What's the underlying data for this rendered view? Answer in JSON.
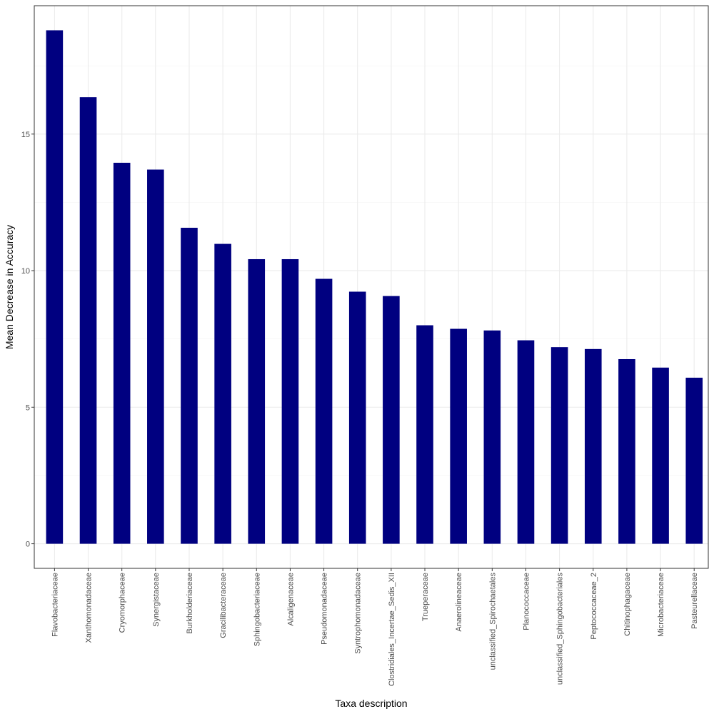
{
  "colors": {
    "bar": "#000080",
    "grid_major": "#ebebeb",
    "grid_minor": "#f5f5f5",
    "panel_border": "#333333",
    "tick_text": "#4d4d4d"
  },
  "chart_data": {
    "type": "bar",
    "title": "",
    "xlabel": "Taxa description",
    "ylabel": "Mean Decrease in Accuracy",
    "ylim": [
      -0.9,
      19.7
    ],
    "y_ticks": [
      0,
      5,
      10,
      15
    ],
    "grid": true,
    "legend": "none",
    "categories": [
      "Flavobacteriaceae",
      "Xanthomonadaceae",
      "Cryomorphaceae",
      "Synergistaceae",
      "Burkholderiaceae",
      "Gracilibacteraceae",
      "Sphingobacteriaceae",
      "Alcaligenaceae",
      "Pseudomonadaceae",
      "Syntrophomonadaceae",
      "Clostridiales_Incertae_Sedis_XII",
      "Trueperaceae",
      "Anaerolineaceae",
      "unclassified_Spirochaetales",
      "Planococcaceae",
      "unclassified_Sphingobacteriales",
      "Peptococcaceae_2",
      "Chitinophagaceae",
      "Microbacteriaceae",
      "Pasteurellaceae"
    ],
    "values": [
      18.8,
      16.35,
      13.95,
      13.7,
      11.57,
      10.98,
      10.42,
      10.42,
      9.7,
      9.23,
      9.07,
      8.0,
      7.87,
      7.81,
      7.45,
      7.2,
      7.13,
      6.76,
      6.45,
      6.08
    ]
  }
}
